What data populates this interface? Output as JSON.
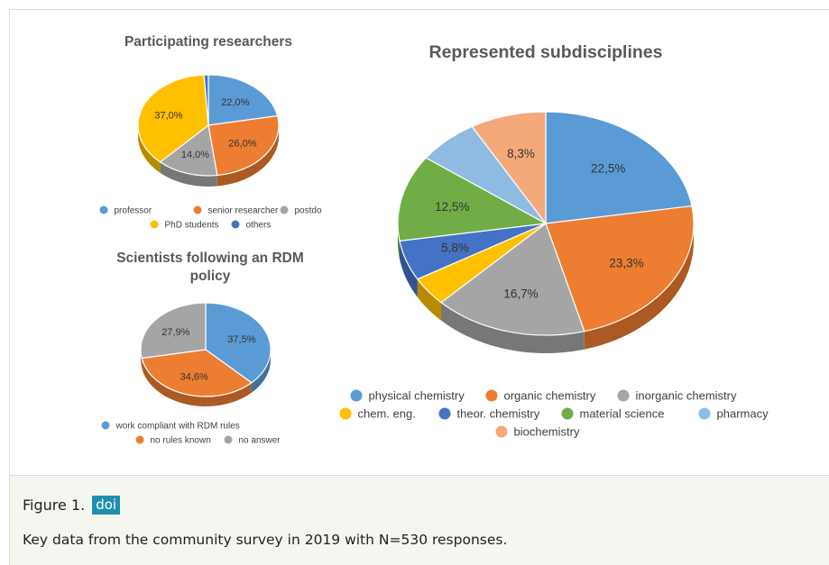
{
  "caption": {
    "figure_label": "Figure 1.",
    "doi_label": "doi",
    "text": "Key data from the community survey in 2019 with N=530 responses."
  },
  "chart_data": [
    {
      "type": "pie",
      "title": "Participating researchers",
      "categories": [
        "professor",
        "senior researcher",
        "postdo",
        "PhD students",
        "others"
      ],
      "values": [
        22.0,
        26.0,
        14.0,
        37.0,
        1.0
      ],
      "value_labels": [
        "22,0%",
        "26,0%",
        "14,0%",
        "37,0%",
        ""
      ],
      "colors": [
        "#5b9bd5",
        "#ed7d31",
        "#a5a5a5",
        "#ffc000",
        "#4472c4"
      ],
      "legend_position": "bottom",
      "three_d": true
    },
    {
      "type": "pie",
      "title": "Scientists following an RDM policy",
      "categories": [
        "work compliant with RDM rules",
        "no rules known",
        "no answer"
      ],
      "values": [
        37.5,
        34.6,
        27.9
      ],
      "value_labels": [
        "37,5%",
        "34,6%",
        "27,9%"
      ],
      "colors": [
        "#5b9bd5",
        "#ed7d31",
        "#a5a5a5"
      ],
      "legend_position": "bottom",
      "three_d": true
    },
    {
      "type": "pie",
      "title": "Represented subdisciplines",
      "categories": [
        "physical chemistry",
        "organic chemistry",
        "inorganic chemistry",
        "chem. eng.",
        "theor. chemistry",
        "material science",
        "pharmacy",
        "biochemistry"
      ],
      "values": [
        22.5,
        23.3,
        16.7,
        4.2,
        5.8,
        12.5,
        6.7,
        8.3
      ],
      "value_labels": [
        "22,5%",
        "23,3%",
        "16,7%",
        "",
        "5,8%",
        "12,5%",
        "",
        "8,3%"
      ],
      "colors": [
        "#5b9bd5",
        "#ed7d31",
        "#a5a5a5",
        "#ffc000",
        "#4472c4",
        "#70ad47",
        "#8fbbe3",
        "#f4a97a"
      ],
      "legend_position": "bottom",
      "three_d": true
    }
  ]
}
